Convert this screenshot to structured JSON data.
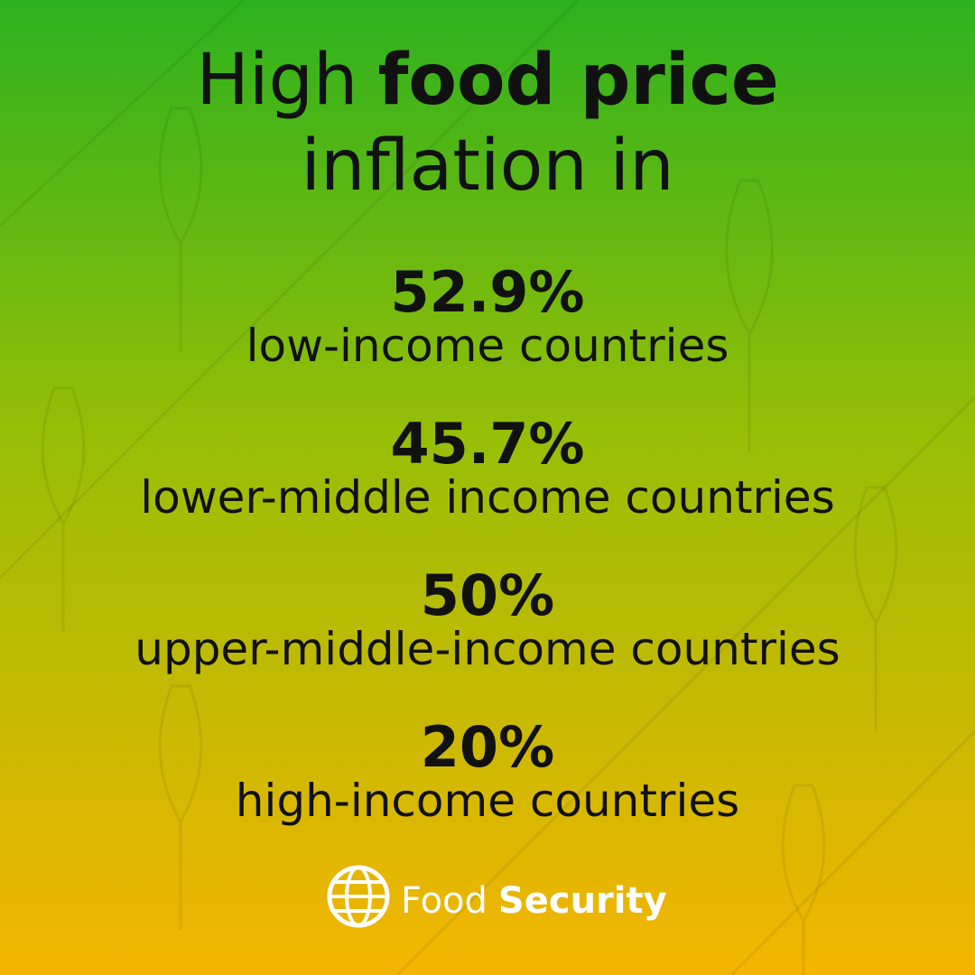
{
  "title": {
    "line1_regular": "High",
    "line1_bold": "food price",
    "line2": "inflation in"
  },
  "items": [
    {
      "value": "52.9%",
      "label": "low-income countries"
    },
    {
      "value": "45.7%",
      "label": "lower-middle income countries"
    },
    {
      "value": "50%",
      "label": "upper-middle-income countries"
    },
    {
      "value": "20%",
      "label": "high-income countries"
    }
  ],
  "footer": {
    "regular": "Food",
    "bold": "Security"
  }
}
